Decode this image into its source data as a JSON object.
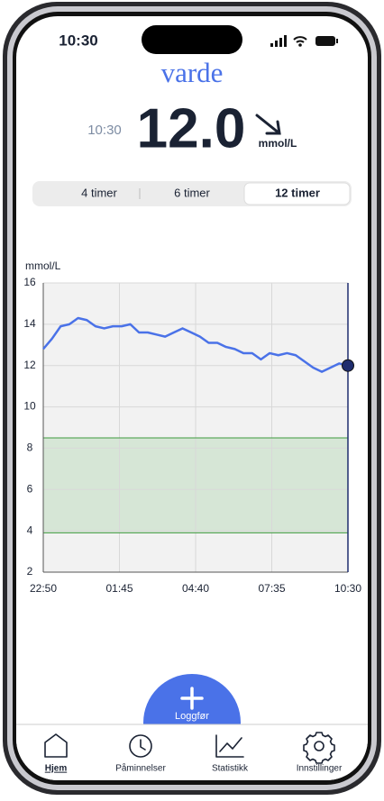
{
  "status_bar": {
    "time": "10:30"
  },
  "header": {
    "app_name": "varde",
    "reading_time": "10:30",
    "reading_value": "12.0",
    "unit": "mmol/L"
  },
  "tabs": [
    "4 timer",
    "6 timer",
    "12 timer"
  ],
  "chart_data": {
    "type": "line",
    "y_label": "mmol/L",
    "x": [
      0,
      20,
      40,
      60,
      80,
      100,
      120,
      140,
      160,
      180,
      200,
      220,
      240,
      260,
      280,
      300,
      320,
      340,
      360,
      380,
      400,
      420,
      440,
      460,
      480,
      500,
      520,
      540,
      560,
      580,
      600,
      620,
      640,
      660,
      680,
      700
    ],
    "series": [
      {
        "color": "#4a72e8",
        "values": [
          12.8,
          13.3,
          13.9,
          14.0,
          14.3,
          14.2,
          13.9,
          13.8,
          13.9,
          13.9,
          14.0,
          13.6,
          13.6,
          13.5,
          13.4,
          13.6,
          13.8,
          13.6,
          13.4,
          13.1,
          13.1,
          12.9,
          12.8,
          12.6,
          12.6,
          12.3,
          12.6,
          12.5,
          12.6,
          12.5,
          12.2,
          11.9,
          11.7,
          11.9,
          12.1,
          12.0
        ]
      }
    ],
    "target_range": {
      "values": [
        3.9,
        8.5
      ],
      "color": "#d6e6d6",
      "border": "#3f9a3f"
    },
    "xlim": [
      0,
      700
    ],
    "xticks": [
      {
        "value": 0,
        "label": "22:50"
      },
      {
        "value": 175,
        "label": "01:45"
      },
      {
        "value": 350,
        "label": "04:40"
      },
      {
        "value": 525,
        "label": "07:35"
      },
      {
        "value": 700,
        "label": "10:30"
      }
    ],
    "ylim": [
      2,
      16
    ],
    "yticks": [
      2,
      4,
      6,
      8,
      10,
      12,
      14,
      16
    ],
    "grid": true
  },
  "action_button": "Loggfør",
  "nav": [
    "Hjem",
    "Påminnelser",
    "Statistikk",
    "Innstillinger"
  ]
}
